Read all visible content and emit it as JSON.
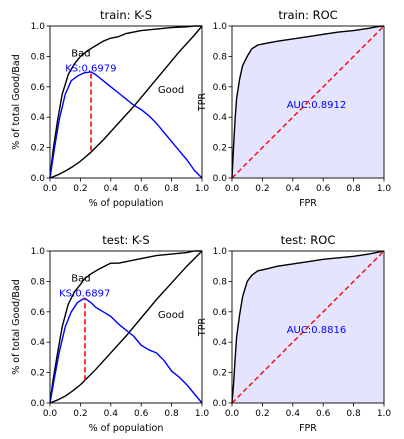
{
  "chart_data": [
    {
      "id": "train_ks",
      "type": "line",
      "title": "train: K-S",
      "xlabel": "% of population",
      "ylabel": "% of total Good/Bad",
      "xlim": [
        0,
        1
      ],
      "ylim": [
        0,
        1
      ],
      "xticks": [
        0.0,
        0.2,
        0.4,
        0.6,
        0.8,
        1.0
      ],
      "yticks": [
        0.0,
        0.2,
        0.4,
        0.6,
        0.8,
        1.0
      ],
      "tick_labels": [
        "0.0",
        "0.2",
        "0.4",
        "0.6",
        "0.8",
        "1.0"
      ],
      "series": [
        {
          "name": "Bad",
          "color": "#000000",
          "x": [
            0,
            0.02,
            0.05,
            0.08,
            0.12,
            0.16,
            0.2,
            0.25,
            0.3,
            0.35,
            0.4,
            0.45,
            0.5,
            0.6,
            0.7,
            0.8,
            0.9,
            0.95,
            1.0
          ],
          "y": [
            0,
            0.18,
            0.38,
            0.55,
            0.68,
            0.75,
            0.8,
            0.84,
            0.87,
            0.9,
            0.92,
            0.93,
            0.95,
            0.97,
            0.98,
            0.99,
            0.995,
            1.0,
            1.0
          ]
        },
        {
          "name": "Good",
          "color": "#000000",
          "x": [
            0,
            0.05,
            0.1,
            0.15,
            0.2,
            0.27,
            0.35,
            0.45,
            0.55,
            0.65,
            0.75,
            0.85,
            0.95,
            1.0
          ],
          "y": [
            0,
            0.02,
            0.045,
            0.075,
            0.11,
            0.17,
            0.25,
            0.36,
            0.47,
            0.59,
            0.71,
            0.83,
            0.94,
            1.0
          ]
        },
        {
          "name": "KS",
          "color": "#0000ff",
          "x": [
            0,
            0.03,
            0.06,
            0.1,
            0.14,
            0.18,
            0.22,
            0.25,
            0.27,
            0.3,
            0.35,
            0.4,
            0.45,
            0.5,
            0.55,
            0.6,
            0.65,
            0.7,
            0.75,
            0.8,
            0.85,
            0.9,
            0.95,
            1.0
          ],
          "y": [
            0,
            0.2,
            0.38,
            0.55,
            0.64,
            0.67,
            0.69,
            0.695,
            0.698,
            0.68,
            0.64,
            0.6,
            0.56,
            0.52,
            0.48,
            0.45,
            0.41,
            0.36,
            0.3,
            0.24,
            0.18,
            0.12,
            0.05,
            0.0
          ]
        }
      ],
      "ks_marker": {
        "x": 0.27,
        "y_low": 0.18,
        "y_high": 0.698,
        "color": "#ff0000"
      },
      "annotations": [
        {
          "text": "Bad",
          "x": 0.14,
          "y": 0.8,
          "color": "#000000"
        },
        {
          "text": "Good",
          "x": 0.71,
          "y": 0.56,
          "color": "#000000"
        },
        {
          "text": "KS:0.6979",
          "x": 0.1,
          "y": 0.7,
          "color": "#0000ff"
        }
      ]
    },
    {
      "id": "train_roc",
      "type": "area",
      "title": "train: ROC",
      "xlabel": "FPR",
      "ylabel": "TPR",
      "xlim": [
        0,
        1
      ],
      "ylim": [
        0,
        1
      ],
      "xticks": [
        0.0,
        0.2,
        0.4,
        0.6,
        0.8,
        1.0
      ],
      "yticks": [
        0.0,
        0.2,
        0.4,
        0.6,
        0.8,
        1.0
      ],
      "tick_labels": [
        "0.0",
        "0.2",
        "0.4",
        "0.6",
        "0.8",
        "1.0"
      ],
      "fill_color": "#e4e4ff",
      "series": [
        {
          "name": "ROC",
          "color": "#000000",
          "x": [
            0,
            0.01,
            0.02,
            0.03,
            0.05,
            0.07,
            0.1,
            0.13,
            0.17,
            0.22,
            0.3,
            0.4,
            0.5,
            0.6,
            0.7,
            0.8,
            0.9,
            0.95,
            1.0
          ],
          "y": [
            0,
            0.2,
            0.38,
            0.52,
            0.65,
            0.74,
            0.8,
            0.85,
            0.875,
            0.885,
            0.9,
            0.915,
            0.93,
            0.945,
            0.96,
            0.97,
            0.985,
            0.995,
            1.0
          ]
        },
        {
          "name": "diagonal",
          "color": "#ff0000",
          "x": [
            0,
            1
          ],
          "y": [
            0,
            1
          ]
        }
      ],
      "annotations": [
        {
          "text": "AUC:0.8912",
          "x": 0.36,
          "y": 0.46,
          "color": "#0000ff"
        }
      ]
    },
    {
      "id": "test_ks",
      "type": "line",
      "title": "test: K-S",
      "xlabel": "% of population",
      "ylabel": "% of total Good/Bad",
      "xlim": [
        0,
        1
      ],
      "ylim": [
        0,
        1
      ],
      "xticks": [
        0.0,
        0.2,
        0.4,
        0.6,
        0.8,
        1.0
      ],
      "yticks": [
        0.0,
        0.2,
        0.4,
        0.6,
        0.8,
        1.0
      ],
      "tick_labels": [
        "0.0",
        "0.2",
        "0.4",
        "0.6",
        "0.8",
        "1.0"
      ],
      "series": [
        {
          "name": "Bad",
          "color": "#000000",
          "x": [
            0,
            0.02,
            0.05,
            0.08,
            0.12,
            0.16,
            0.2,
            0.23,
            0.27,
            0.32,
            0.4,
            0.45,
            0.5,
            0.6,
            0.7,
            0.8,
            0.9,
            0.95,
            1.0
          ],
          "y": [
            0,
            0.15,
            0.33,
            0.5,
            0.65,
            0.73,
            0.78,
            0.82,
            0.85,
            0.88,
            0.92,
            0.92,
            0.93,
            0.95,
            0.97,
            0.98,
            0.99,
            1.0,
            1.0
          ]
        },
        {
          "name": "Good",
          "color": "#000000",
          "x": [
            0,
            0.05,
            0.1,
            0.15,
            0.2,
            0.23,
            0.3,
            0.4,
            0.5,
            0.6,
            0.7,
            0.8,
            0.9,
            1.0
          ],
          "y": [
            0,
            0.02,
            0.045,
            0.08,
            0.12,
            0.15,
            0.22,
            0.33,
            0.44,
            0.56,
            0.68,
            0.79,
            0.9,
            1.0
          ]
        },
        {
          "name": "KS",
          "color": "#0000ff",
          "x": [
            0,
            0.03,
            0.06,
            0.1,
            0.14,
            0.18,
            0.21,
            0.23,
            0.27,
            0.3,
            0.35,
            0.4,
            0.45,
            0.5,
            0.55,
            0.6,
            0.65,
            0.7,
            0.75,
            0.8,
            0.85,
            0.9,
            0.95,
            1.0
          ],
          "y": [
            0,
            0.17,
            0.33,
            0.5,
            0.6,
            0.66,
            0.68,
            0.689,
            0.66,
            0.63,
            0.6,
            0.57,
            0.52,
            0.48,
            0.44,
            0.38,
            0.35,
            0.33,
            0.28,
            0.21,
            0.17,
            0.12,
            0.06,
            0.0
          ]
        }
      ],
      "ks_marker": {
        "x": 0.23,
        "y_low": 0.15,
        "y_high": 0.689,
        "color": "#ff0000"
      },
      "annotations": [
        {
          "text": "Bad",
          "x": 0.14,
          "y": 0.8,
          "color": "#000000"
        },
        {
          "text": "Good",
          "x": 0.71,
          "y": 0.56,
          "color": "#000000"
        },
        {
          "text": "KS:0.6897",
          "x": 0.06,
          "y": 0.7,
          "color": "#0000ff"
        }
      ]
    },
    {
      "id": "test_roc",
      "type": "area",
      "title": "test: ROC",
      "xlabel": "FPR",
      "ylabel": "TPR",
      "xlim": [
        0,
        1
      ],
      "ylim": [
        0,
        1
      ],
      "xticks": [
        0.0,
        0.2,
        0.4,
        0.6,
        0.8,
        1.0
      ],
      "yticks": [
        0.0,
        0.2,
        0.4,
        0.6,
        0.8,
        1.0
      ],
      "tick_labels": [
        "0.0",
        "0.2",
        "0.4",
        "0.6",
        "0.8",
        "1.0"
      ],
      "fill_color": "#e4e4ff",
      "series": [
        {
          "name": "ROC",
          "color": "#000000",
          "x": [
            0,
            0.01,
            0.02,
            0.03,
            0.05,
            0.07,
            0.1,
            0.13,
            0.17,
            0.22,
            0.3,
            0.4,
            0.5,
            0.6,
            0.7,
            0.8,
            0.9,
            0.95,
            1.0
          ],
          "y": [
            0,
            0.12,
            0.28,
            0.43,
            0.58,
            0.7,
            0.8,
            0.84,
            0.87,
            0.88,
            0.9,
            0.915,
            0.93,
            0.945,
            0.955,
            0.965,
            0.98,
            0.99,
            1.0
          ]
        },
        {
          "name": "diagonal",
          "color": "#ff0000",
          "x": [
            0,
            1
          ],
          "y": [
            0,
            1
          ]
        }
      ],
      "annotations": [
        {
          "text": "AUC:0.8816",
          "x": 0.36,
          "y": 0.46,
          "color": "#0000ff"
        }
      ]
    }
  ]
}
